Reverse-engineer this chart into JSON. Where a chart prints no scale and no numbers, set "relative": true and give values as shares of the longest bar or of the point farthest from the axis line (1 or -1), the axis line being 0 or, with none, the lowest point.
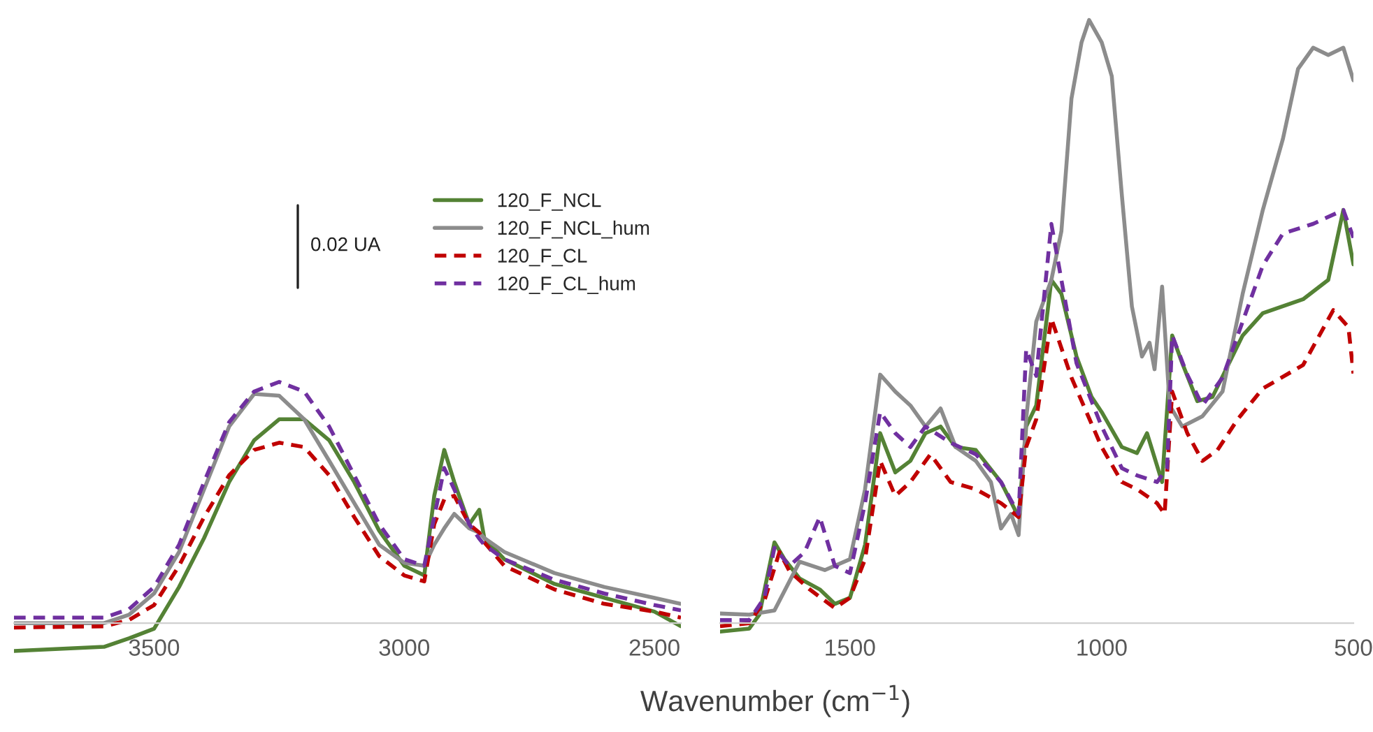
{
  "chart_data": [
    {
      "type": "line",
      "relative": true,
      "xlim": [
        3780,
        2447
      ],
      "xticks": [
        3500,
        3000,
        2500
      ],
      "legend": "top right",
      "annotations": [
        "0.02 UA"
      ],
      "x": [
        3780,
        3600,
        3550,
        3500,
        3450,
        3400,
        3350,
        3300,
        3250,
        3200,
        3150,
        3100,
        3050,
        3000,
        2960,
        2940,
        2920,
        2900,
        2870,
        2850,
        2840,
        2800,
        2700,
        2600,
        2500,
        2447
      ],
      "series": [
        {
          "name": "120_F_NCL",
          "color": "#548235",
          "line_style": "solid",
          "values": [
            -0.115,
            -0.098,
            -0.063,
            -0.023,
            0.15,
            0.353,
            0.585,
            0.758,
            0.845,
            0.845,
            0.758,
            0.585,
            0.383,
            0.238,
            0.198,
            0.528,
            0.718,
            0.585,
            0.41,
            0.47,
            0.353,
            0.265,
            0.163,
            0.105,
            0.048,
            -0.013
          ]
        },
        {
          "name": "120_F_NCL_hum",
          "color": "#8c8c8c",
          "line_style": "solid",
          "values": [
            0.0,
            0.0,
            0.035,
            0.123,
            0.295,
            0.555,
            0.815,
            0.95,
            0.943,
            0.845,
            0.673,
            0.498,
            0.325,
            0.25,
            0.238,
            0.325,
            0.393,
            0.453,
            0.393,
            0.375,
            0.353,
            0.295,
            0.208,
            0.15,
            0.105,
            0.08
          ]
        },
        {
          "name": "120_F_CL",
          "color": "#c00000",
          "line_style": "dashed",
          "values": [
            -0.018,
            -0.013,
            0.013,
            0.075,
            0.238,
            0.44,
            0.613,
            0.718,
            0.748,
            0.73,
            0.613,
            0.44,
            0.278,
            0.198,
            0.173,
            0.41,
            0.513,
            0.528,
            0.41,
            0.375,
            0.335,
            0.238,
            0.14,
            0.08,
            0.048,
            0.023
          ]
        },
        {
          "name": "120_F_CL_hum",
          "color": "#7030a0",
          "line_style": "dashed",
          "values": [
            0.023,
            0.023,
            0.058,
            0.15,
            0.325,
            0.585,
            0.833,
            0.96,
            1.0,
            0.96,
            0.815,
            0.613,
            0.41,
            0.265,
            0.238,
            0.44,
            0.643,
            0.555,
            0.41,
            0.35,
            0.325,
            0.265,
            0.18,
            0.123,
            0.075,
            0.053
          ]
        }
      ]
    },
    {
      "type": "line",
      "relative": true,
      "xlim": [
        1758,
        500
      ],
      "xticks": [
        1500,
        1000,
        500
      ],
      "xlabel": "Wavenumber (cm$^{−1}$)",
      "series": [
        {
          "color": "#548235",
          "line_style": "solid",
          "x": [
            1758,
            1700,
            1680,
            1650,
            1630,
            1600,
            1560,
            1530,
            1500,
            1470,
            1440,
            1410,
            1380,
            1350,
            1320,
            1290,
            1250,
            1200,
            1165,
            1150,
            1130,
            1100,
            1080,
            1050,
            1020,
            1000,
            960,
            930,
            910,
            880,
            860,
            840,
            810,
            780,
            720,
            680,
            600,
            550,
            520,
            500
          ],
          "values": [
            -0.014,
            -0.009,
            0.014,
            0.134,
            0.106,
            0.074,
            0.056,
            0.032,
            0.042,
            0.13,
            0.315,
            0.25,
            0.269,
            0.315,
            0.326,
            0.292,
            0.287,
            0.234,
            0.176,
            0.326,
            0.361,
            0.569,
            0.546,
            0.442,
            0.375,
            0.35,
            0.292,
            0.282,
            0.315,
            0.234,
            0.477,
            0.431,
            0.368,
            0.375,
            0.477,
            0.514,
            0.537,
            0.569,
            0.685,
            0.595
          ]
        },
        {
          "color": "#8c8c8c",
          "line_style": "solid",
          "x": [
            1758,
            1700,
            1650,
            1600,
            1550,
            1500,
            1470,
            1440,
            1410,
            1380,
            1350,
            1320,
            1290,
            1250,
            1220,
            1200,
            1180,
            1165,
            1150,
            1130,
            1100,
            1080,
            1060,
            1040,
            1025,
            1000,
            980,
            960,
            940,
            920,
            905,
            895,
            880,
            865,
            840,
            800,
            760,
            720,
            680,
            640,
            610,
            580,
            550,
            520,
            500
          ],
          "values": [
            0.016,
            0.014,
            0.021,
            0.102,
            0.088,
            0.106,
            0.222,
            0.412,
            0.384,
            0.361,
            0.326,
            0.356,
            0.292,
            0.269,
            0.234,
            0.157,
            0.181,
            0.146,
            0.338,
            0.5,
            0.569,
            0.65,
            0.87,
            0.963,
            1.0,
            0.963,
            0.907,
            0.71,
            0.525,
            0.442,
            0.465,
            0.421,
            0.558,
            0.361,
            0.326,
            0.343,
            0.384,
            0.546,
            0.685,
            0.803,
            0.919,
            0.954,
            0.942,
            0.954,
            0.9
          ]
        },
        {
          "color": "#c00000",
          "line_style": "dashed",
          "x": [
            1758,
            1700,
            1670,
            1640,
            1620,
            1580,
            1530,
            1500,
            1470,
            1440,
            1410,
            1380,
            1340,
            1300,
            1250,
            1200,
            1165,
            1150,
            1130,
            1100,
            1060,
            1000,
            960,
            930,
            890,
            875,
            860,
            830,
            800,
            770,
            730,
            680,
            600,
            540,
            510,
            500
          ],
          "values": [
            -0.005,
            0.0,
            0.037,
            0.118,
            0.086,
            0.056,
            0.025,
            0.042,
            0.106,
            0.269,
            0.211,
            0.234,
            0.28,
            0.234,
            0.222,
            0.199,
            0.176,
            0.292,
            0.338,
            0.505,
            0.407,
            0.292,
            0.234,
            0.222,
            0.199,
            0.181,
            0.384,
            0.315,
            0.269,
            0.287,
            0.338,
            0.389,
            0.428,
            0.519,
            0.491,
            0.414
          ]
        },
        {
          "color": "#7030a0",
          "line_style": "dashed",
          "x": [
            1758,
            1700,
            1670,
            1650,
            1620,
            1590,
            1560,
            1530,
            1500,
            1470,
            1440,
            1410,
            1380,
            1350,
            1300,
            1250,
            1200,
            1165,
            1150,
            1130,
            1100,
            1080,
            1050,
            1000,
            960,
            930,
            890,
            870,
            860,
            830,
            800,
            760,
            720,
            680,
            640,
            580,
            520,
            500
          ],
          "values": [
            0.005,
            0.005,
            0.042,
            0.125,
            0.095,
            0.118,
            0.176,
            0.095,
            0.083,
            0.199,
            0.35,
            0.315,
            0.292,
            0.326,
            0.299,
            0.28,
            0.234,
            0.181,
            0.454,
            0.41,
            0.662,
            0.569,
            0.431,
            0.326,
            0.257,
            0.245,
            0.234,
            0.257,
            0.477,
            0.412,
            0.361,
            0.407,
            0.5,
            0.593,
            0.646,
            0.662,
            0.685,
            0.639
          ]
        }
      ]
    }
  ]
}
